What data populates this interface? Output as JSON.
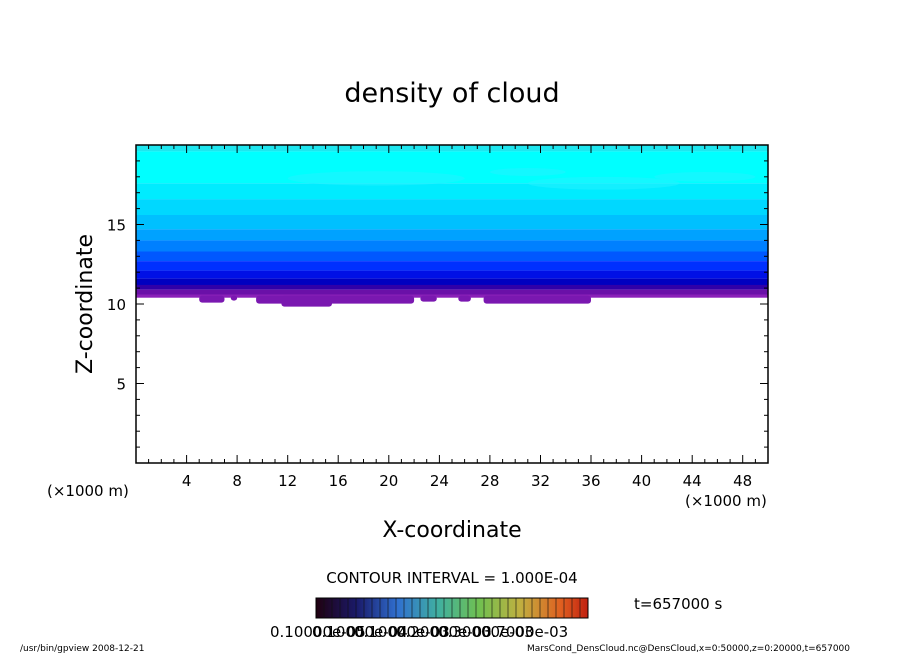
{
  "chart_data": {
    "type": "heatmap",
    "title": "density of cloud",
    "xlabel": "X-coordinate",
    "ylabel": "Z-coordinate",
    "x_unit": "(×1000 m)",
    "z_unit": "(×1000 m)",
    "xlim": [
      0,
      50
    ],
    "zlim": [
      0,
      20
    ],
    "x_ticks": [
      "4",
      "8",
      "12",
      "16",
      "20",
      "24",
      "28",
      "32",
      "36",
      "40",
      "44",
      "48"
    ],
    "z_ticks": [
      "5",
      "10",
      "15"
    ],
    "cloud_base_km": 10.4,
    "cloud_top_km": 20,
    "bands": [
      {
        "from": 19.6,
        "to": 20,
        "color": "#1ee6ef"
      },
      {
        "from": 17.6,
        "to": 19.6,
        "color": "#00ffff"
      },
      {
        "from": 16.6,
        "to": 17.6,
        "color": "#00ecff"
      },
      {
        "from": 15.6,
        "to": 16.6,
        "color": "#00d8ff"
      },
      {
        "from": 14.7,
        "to": 15.6,
        "color": "#00c0ff"
      },
      {
        "from": 14.0,
        "to": 14.7,
        "color": "#00a2ff"
      },
      {
        "from": 13.3,
        "to": 14.0,
        "color": "#0080ff"
      },
      {
        "from": 12.7,
        "to": 13.3,
        "color": "#0058ff"
      },
      {
        "from": 12.1,
        "to": 12.7,
        "color": "#0030ff"
      },
      {
        "from": 11.6,
        "to": 12.1,
        "color": "#0010e6"
      },
      {
        "from": 11.2,
        "to": 11.6,
        "color": "#0000c0"
      },
      {
        "from": 10.9,
        "to": 11.2,
        "color": "#3000a8"
      },
      {
        "from": 10.6,
        "to": 10.9,
        "color": "#6a10a8"
      },
      {
        "from": 10.4,
        "to": 10.6,
        "color": "#8a20b8"
      }
    ],
    "contour_interval_label": "CONTOUR INTERVAL = 1.000E-04",
    "colorbar": {
      "min": 0.0001,
      "max": 0.001,
      "labels": [
        "0.10000e-05",
        "0.10000e-04",
        "0.10000e-03",
        "0.20000e-03",
        "0.30000e-03",
        "0.7000e-03"
      ]
    },
    "time_label": "t=657000 s"
  },
  "footer": {
    "left": "/usr/bin/gpview   2008-12-21",
    "right": "MarsCond_DensCloud.nc@DensCloud,x=0:50000,z=0:20000,t=657000"
  }
}
